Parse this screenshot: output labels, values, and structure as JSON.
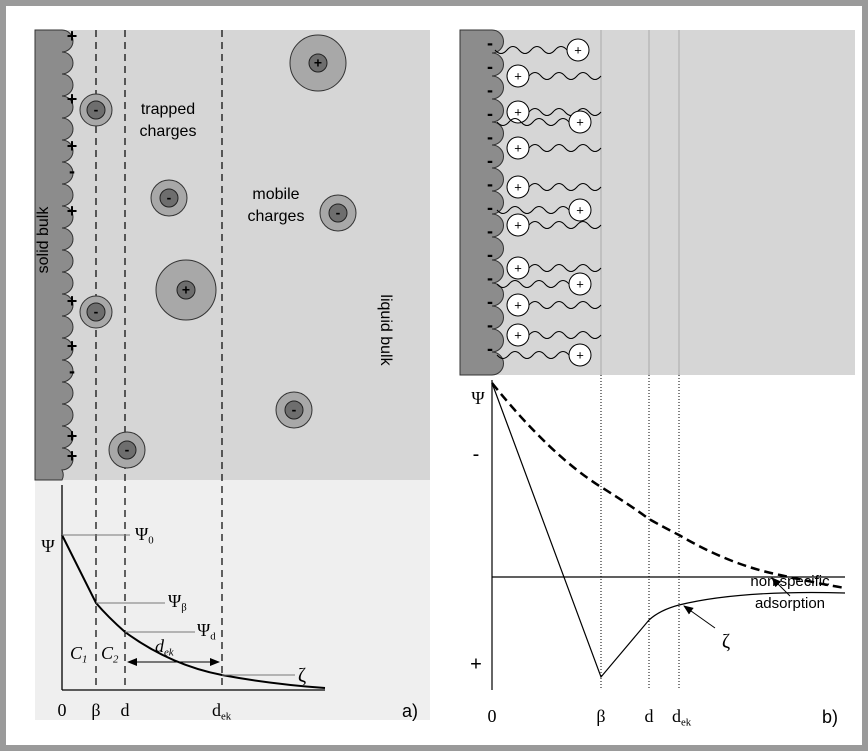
{
  "panel_a": {
    "surface_charges": [
      "+",
      "+",
      "+",
      "-",
      "+",
      "+",
      "+",
      "-",
      "+",
      "+"
    ],
    "solid_label": "solid bulk",
    "liquid_label": "liquid bulk",
    "trapped_label": [
      "trapped",
      "charges"
    ],
    "mobile_label": [
      "mobile",
      "charges"
    ],
    "ions": [
      "+",
      "-",
      "-",
      "-",
      "+",
      "-",
      "-",
      "-"
    ],
    "plot": {
      "y_axis_label": "Ψ",
      "psi_0": {
        "symbol": "Ψ",
        "sub": "0"
      },
      "psi_beta": {
        "symbol": "Ψ",
        "sub": "β"
      },
      "psi_d": {
        "symbol": "Ψ",
        "sub": "d"
      },
      "c1": {
        "symbol": "C",
        "sub": "1"
      },
      "c2": {
        "symbol": "C",
        "sub": "2"
      },
      "d_ek": {
        "symbol": "d",
        "sub": "ek"
      },
      "zeta": "ζ",
      "x_labels": [
        "0",
        "β",
        "d",
        {
          "symbol": "d",
          "sub": "ek"
        }
      ],
      "panel_label": "a)"
    }
  },
  "panel_b": {
    "surface_charges": [
      "-",
      "-",
      "-",
      "-",
      "-",
      "-",
      "-",
      "-",
      "-",
      "-",
      "-",
      "-",
      "-",
      "-"
    ],
    "ions": [
      "+",
      "+",
      "+",
      "+",
      "+",
      "+",
      "+",
      "+",
      "+",
      "+",
      "+",
      "+",
      "+"
    ],
    "plot": {
      "y_axis_label": "Ψ",
      "minus_label": "-",
      "plus_label": "+",
      "adsorption_label": [
        "non specific",
        "adsorption"
      ],
      "zeta": "ζ",
      "x_labels": [
        "0",
        "β",
        "d",
        {
          "symbol": "d",
          "sub": "ek"
        }
      ],
      "panel_label": "b)"
    }
  }
}
